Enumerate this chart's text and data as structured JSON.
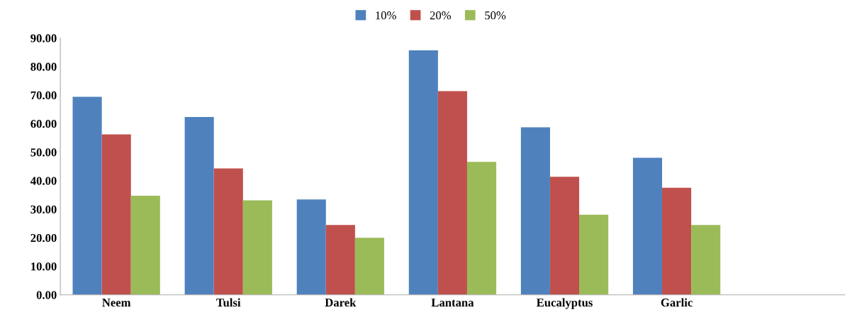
{
  "chart_data": {
    "type": "bar",
    "categories": [
      "Neem",
      "Tulsi",
      "Darek",
      "Lantana",
      "Eucalyptus",
      "Garlic"
    ],
    "series": [
      {
        "name": "10%",
        "color": "#4f81bd",
        "values": [
          69.4,
          62.3,
          33.4,
          85.7,
          58.7,
          48.0
        ]
      },
      {
        "name": "20%",
        "color": "#c0504d",
        "values": [
          56.2,
          44.3,
          24.5,
          71.4,
          41.4,
          37.5
        ]
      },
      {
        "name": "50%",
        "color": "#9bbb59",
        "values": [
          34.7,
          33.1,
          20.0,
          46.6,
          28.1,
          24.5
        ]
      }
    ],
    "ylim": [
      0,
      90
    ],
    "yticks": [
      {
        "value": 0,
        "label": "0.00"
      },
      {
        "value": 10,
        "label": "10.00"
      },
      {
        "value": 20,
        "label": "20.00"
      },
      {
        "value": 30,
        "label": "30.00"
      },
      {
        "value": 40,
        "label": "40.00"
      },
      {
        "value": 50,
        "label": "50.00"
      },
      {
        "value": 60,
        "label": "60.00"
      },
      {
        "value": 70,
        "label": "70.00"
      },
      {
        "value": 80,
        "label": "80.00"
      },
      {
        "value": 90,
        "label": "90.00"
      }
    ],
    "grid": false,
    "legend": "top"
  }
}
